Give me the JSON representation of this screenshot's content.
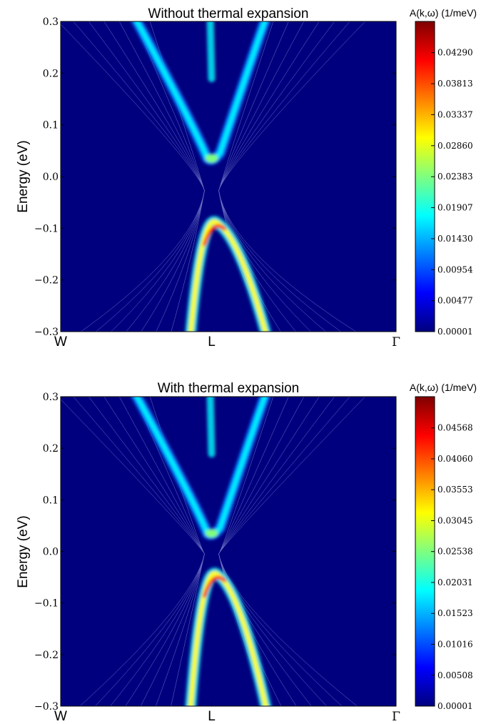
{
  "colors": {
    "background_field": "#00007f",
    "colormap": [
      "#00007f",
      "#0000ff",
      "#007fff",
      "#00ffff",
      "#7fff7f",
      "#ffff00",
      "#ff7f00",
      "#ff0000",
      "#7f0000"
    ],
    "contour_line": "#c8d2ff"
  },
  "chart_data": [
    {
      "type": "heatmap",
      "title": "Without thermal expansion",
      "ylabel": "Energy (eV)",
      "xlabel": "",
      "ylim": [
        -0.3,
        0.3
      ],
      "yticks": [
        {
          "value": 0.3,
          "label": "0.3"
        },
        {
          "value": 0.2,
          "label": "0.2"
        },
        {
          "value": 0.1,
          "label": "0.1"
        },
        {
          "value": 0.0,
          "label": "0.0"
        },
        {
          "value": -0.1,
          "label": "−0.1"
        },
        {
          "value": -0.2,
          "label": "−0.2"
        },
        {
          "value": -0.3,
          "label": "−0.3"
        }
      ],
      "xticks": [
        {
          "value": 0.0,
          "label": "W"
        },
        {
          "value": 0.45,
          "label": "L"
        },
        {
          "value": 1.0,
          "label": "Γ"
        }
      ],
      "bands": {
        "conduction_min_eV": 0.035,
        "valence_max_eV": -0.09,
        "peak_intensity": 0.0477
      },
      "colorbar": {
        "label": "A(k,ω) (1/meV)",
        "min": 1e-05,
        "max": 0.0477,
        "ticks": [
          "0.00001",
          "0.00477",
          "0.00954",
          "0.01430",
          "0.01907",
          "0.02383",
          "0.02860",
          "0.03337",
          "0.03813",
          "0.04290"
        ]
      },
      "grid": false
    },
    {
      "type": "heatmap",
      "title": "With thermal expansion",
      "ylabel": "Energy (eV)",
      "xlabel": "",
      "ylim": [
        -0.3,
        0.3
      ],
      "yticks": [
        {
          "value": 0.3,
          "label": "0.3"
        },
        {
          "value": 0.2,
          "label": "0.2"
        },
        {
          "value": 0.1,
          "label": "0.1"
        },
        {
          "value": 0.0,
          "label": "0.0"
        },
        {
          "value": -0.1,
          "label": "−0.1"
        },
        {
          "value": -0.2,
          "label": "−0.2"
        },
        {
          "value": -0.3,
          "label": "−0.3"
        }
      ],
      "xticks": [
        {
          "value": 0.0,
          "label": "W"
        },
        {
          "value": 0.45,
          "label": "L"
        },
        {
          "value": 1.0,
          "label": "Γ"
        }
      ],
      "bands": {
        "conduction_min_eV": 0.035,
        "valence_max_eV": -0.045,
        "peak_intensity": 0.0508
      },
      "colorbar": {
        "label": "A(k,ω) (1/meV)",
        "min": 1e-05,
        "max": 0.0508,
        "ticks": [
          "0.00001",
          "0.00508",
          "0.01016",
          "0.01523",
          "0.02031",
          "0.02538",
          "0.03045",
          "0.03553",
          "0.04060",
          "0.04568"
        ]
      },
      "grid": false
    }
  ]
}
